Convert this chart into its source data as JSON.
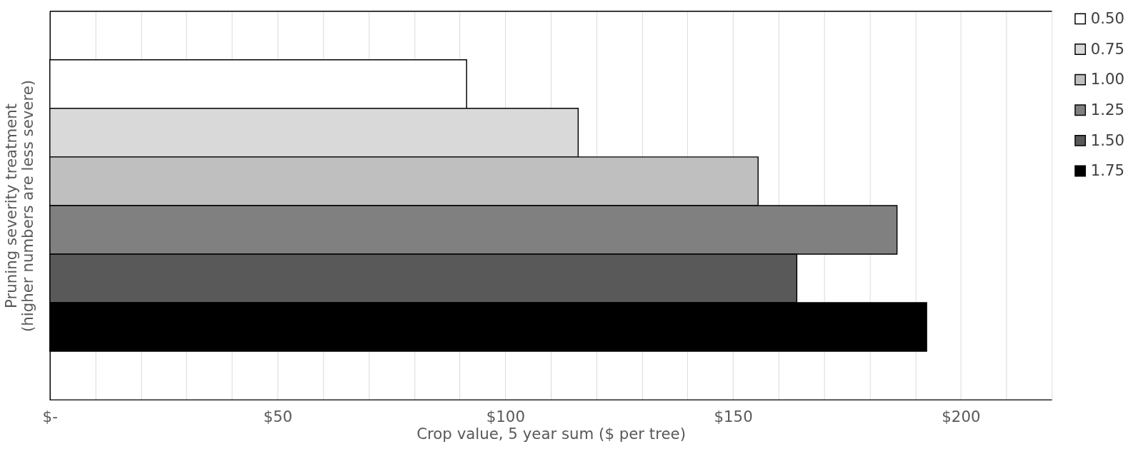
{
  "chart_data": {
    "type": "bar",
    "orientation": "horizontal",
    "xlabel": "Crop value, 5 year sum ($ per tree)",
    "ylabel": "Pruning  severity treatment\n(higher numbers are less severe)",
    "categories": [
      null
    ],
    "series": [
      {
        "name": "0.50",
        "color": "#ffffff",
        "values": [
          91.5
        ]
      },
      {
        "name": "0.75",
        "color": "#d9d9d9",
        "values": [
          116
        ]
      },
      {
        "name": "1.00",
        "color": "#bfbfbf",
        "values": [
          155.5
        ]
      },
      {
        "name": "1.25",
        "color": "#808080",
        "values": [
          186
        ]
      },
      {
        "name": "1.50",
        "color": "#595959",
        "values": [
          164
        ]
      },
      {
        "name": "1.75",
        "color": "#000000",
        "values": [
          192.5
        ]
      }
    ],
    "xlim": [
      0,
      220
    ],
    "xticks": [
      {
        "value": 0,
        "label": "$-"
      },
      {
        "value": 10,
        "label": null
      },
      {
        "value": 20,
        "label": null
      },
      {
        "value": 30,
        "label": null
      },
      {
        "value": 40,
        "label": null
      },
      {
        "value": 50,
        "label": "$50"
      },
      {
        "value": 60,
        "label": null
      },
      {
        "value": 70,
        "label": null
      },
      {
        "value": 80,
        "label": null
      },
      {
        "value": 90,
        "label": null
      },
      {
        "value": 100,
        "label": "$100"
      },
      {
        "value": 110,
        "label": null
      },
      {
        "value": 120,
        "label": null
      },
      {
        "value": 130,
        "label": null
      },
      {
        "value": 140,
        "label": null
      },
      {
        "value": 150,
        "label": "$150"
      },
      {
        "value": 160,
        "label": null
      },
      {
        "value": 170,
        "label": null
      },
      {
        "value": 180,
        "label": null
      },
      {
        "value": 190,
        "label": null
      },
      {
        "value": 200,
        "label": "$200"
      },
      {
        "value": 210,
        "label": null
      }
    ],
    "grid": "x",
    "legend": "right"
  }
}
